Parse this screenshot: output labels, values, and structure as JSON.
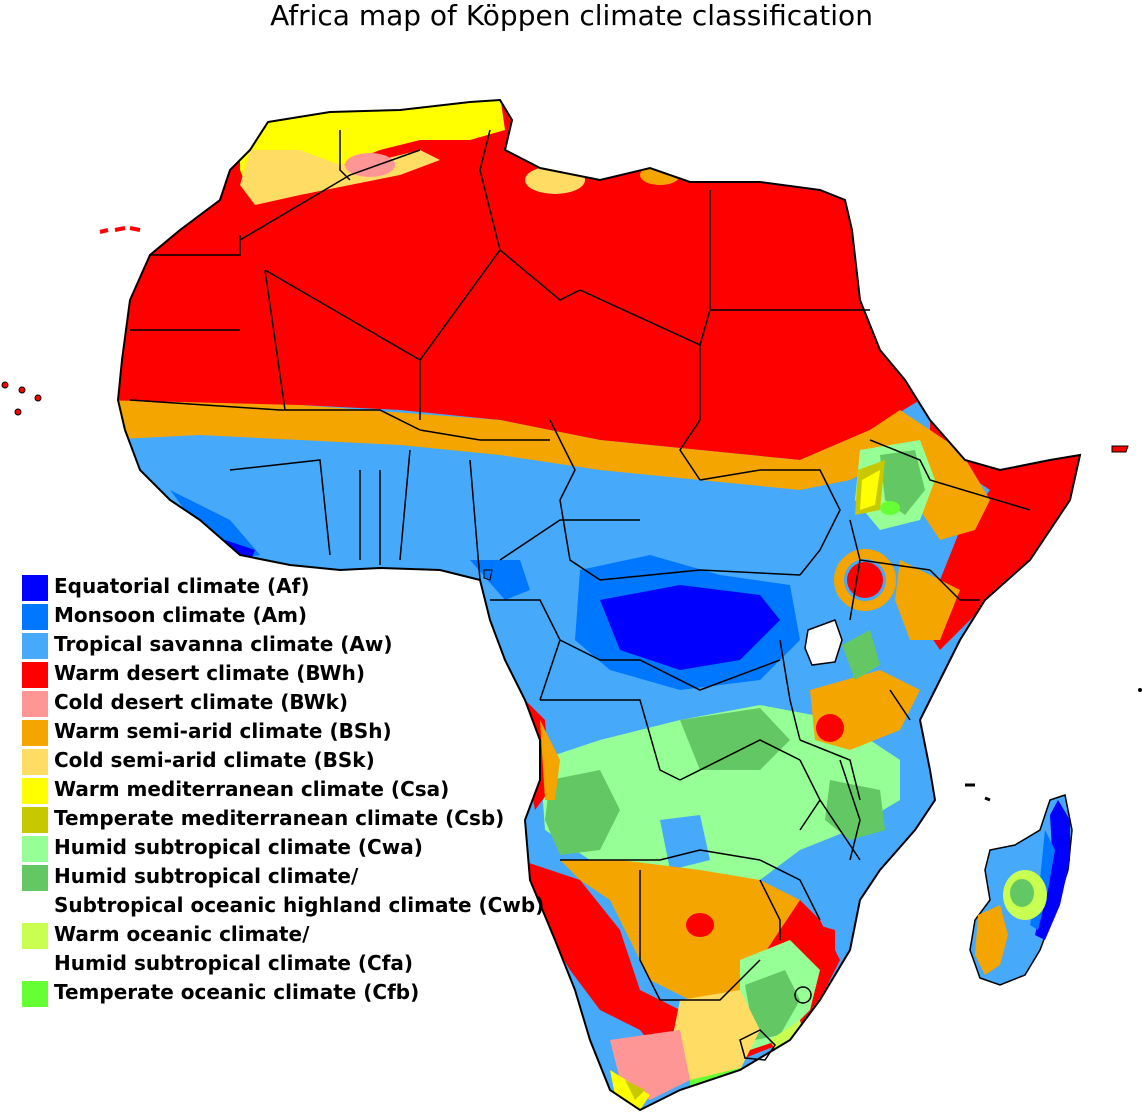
{
  "title": "Africa map of Köppen climate classification",
  "colors": {
    "Af": "#0000ff",
    "Am": "#0077ff",
    "Aw": "#46a9fa",
    "BWh": "#ff0000",
    "BWk": "#ff9696",
    "BSh": "#f5a500",
    "BSk": "#ffdc64",
    "Csa": "#ffff00",
    "Csb": "#c8c800",
    "Cwa": "#96ff96",
    "Cwb": "#63c764",
    "Cfa": "#c8ff50",
    "Cfb": "#66ff33",
    "border": "#000000",
    "water": "#ffffff"
  },
  "legend": [
    {
      "code": "Af",
      "label": "Equatorial climate (Af)"
    },
    {
      "code": "Am",
      "label": "Monsoon climate (Am)"
    },
    {
      "code": "Aw",
      "label": "Tropical savanna climate (Aw)"
    },
    {
      "code": "BWh",
      "label": "Warm desert climate (BWh)"
    },
    {
      "code": "BWk",
      "label": "Cold desert climate (BWk)"
    },
    {
      "code": "BSh",
      "label": "Warm semi-arid climate (BSh)"
    },
    {
      "code": "BSk",
      "label": "Cold semi-arid climate (BSk)"
    },
    {
      "code": "Csa",
      "label": "Warm mediterranean climate (Csa)"
    },
    {
      "code": "Csb",
      "label": "Temperate mediterranean climate (Csb)"
    },
    {
      "code": "Cwa",
      "label": "Humid subtropical climate (Cwa)"
    },
    {
      "code": "Cwb",
      "label": "Humid subtropical climate/\nSubtropical oceanic highland climate (Cwb)"
    },
    {
      "code": "Cfa",
      "label": "Warm oceanic climate/\nHumid subtropical climate (Cfa)"
    },
    {
      "code": "Cfb",
      "label": "Temperate oceanic climate (Cfb)"
    }
  ]
}
